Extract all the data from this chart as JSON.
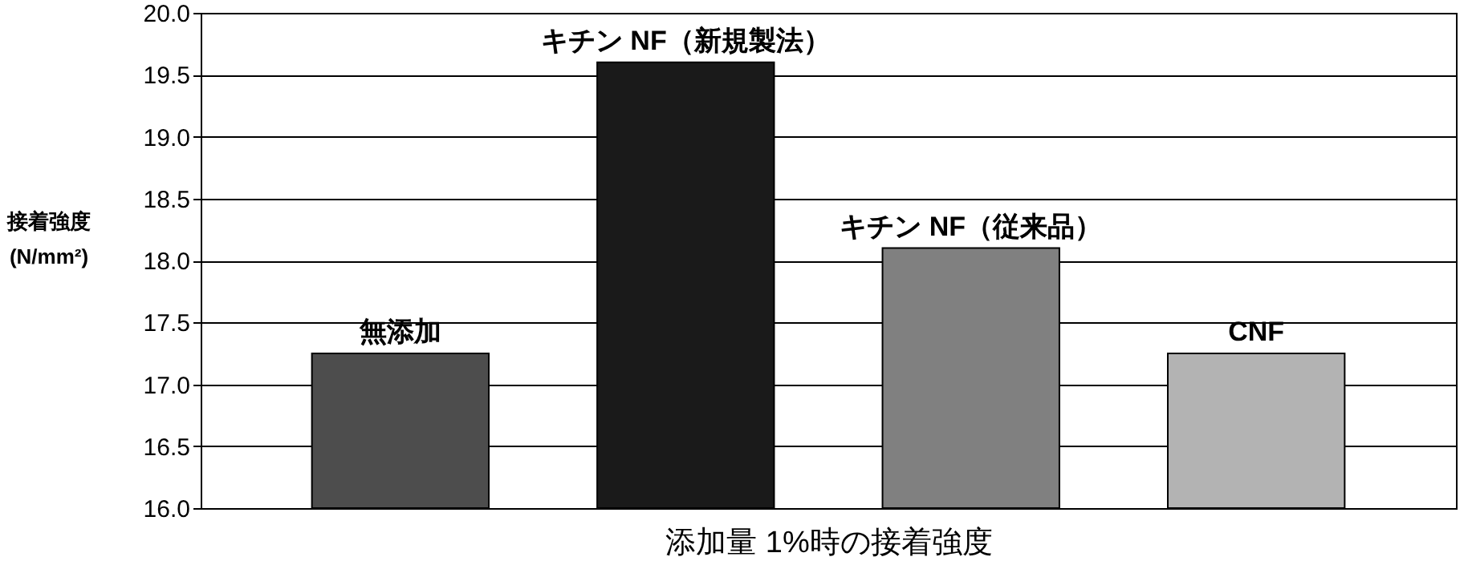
{
  "chart_data": {
    "type": "bar",
    "xlabel": "添加量 1%時の接着強度",
    "ylabel": "接着強度 (N/mm²)",
    "categories": [
      "無添加",
      "キチン NF（新規製法）",
      "キチン NF（従来品）",
      "CNF"
    ],
    "values": [
      17.25,
      19.6,
      18.1,
      17.25
    ],
    "colors": [
      "#4d4d4d",
      "#1a1a1a",
      "#808080",
      "#b3b3b3"
    ],
    "ylim": [
      16.0,
      20.0
    ],
    "yticks": [
      {
        "value": 16,
        "label": "16.0"
      },
      {
        "value": 16.5,
        "label": "16.5"
      },
      {
        "value": 17,
        "label": "17.0"
      },
      {
        "value": 17.5,
        "label": "17.5"
      },
      {
        "value": 18,
        "label": "18.0"
      },
      {
        "value": 18.5,
        "label": "18.5"
      },
      {
        "value": 19,
        "label": "19.0"
      },
      {
        "value": 19.5,
        "label": "19.5"
      },
      {
        "value": 20,
        "label": "20.0"
      }
    ],
    "grid": "y",
    "tick_labels": "y"
  }
}
